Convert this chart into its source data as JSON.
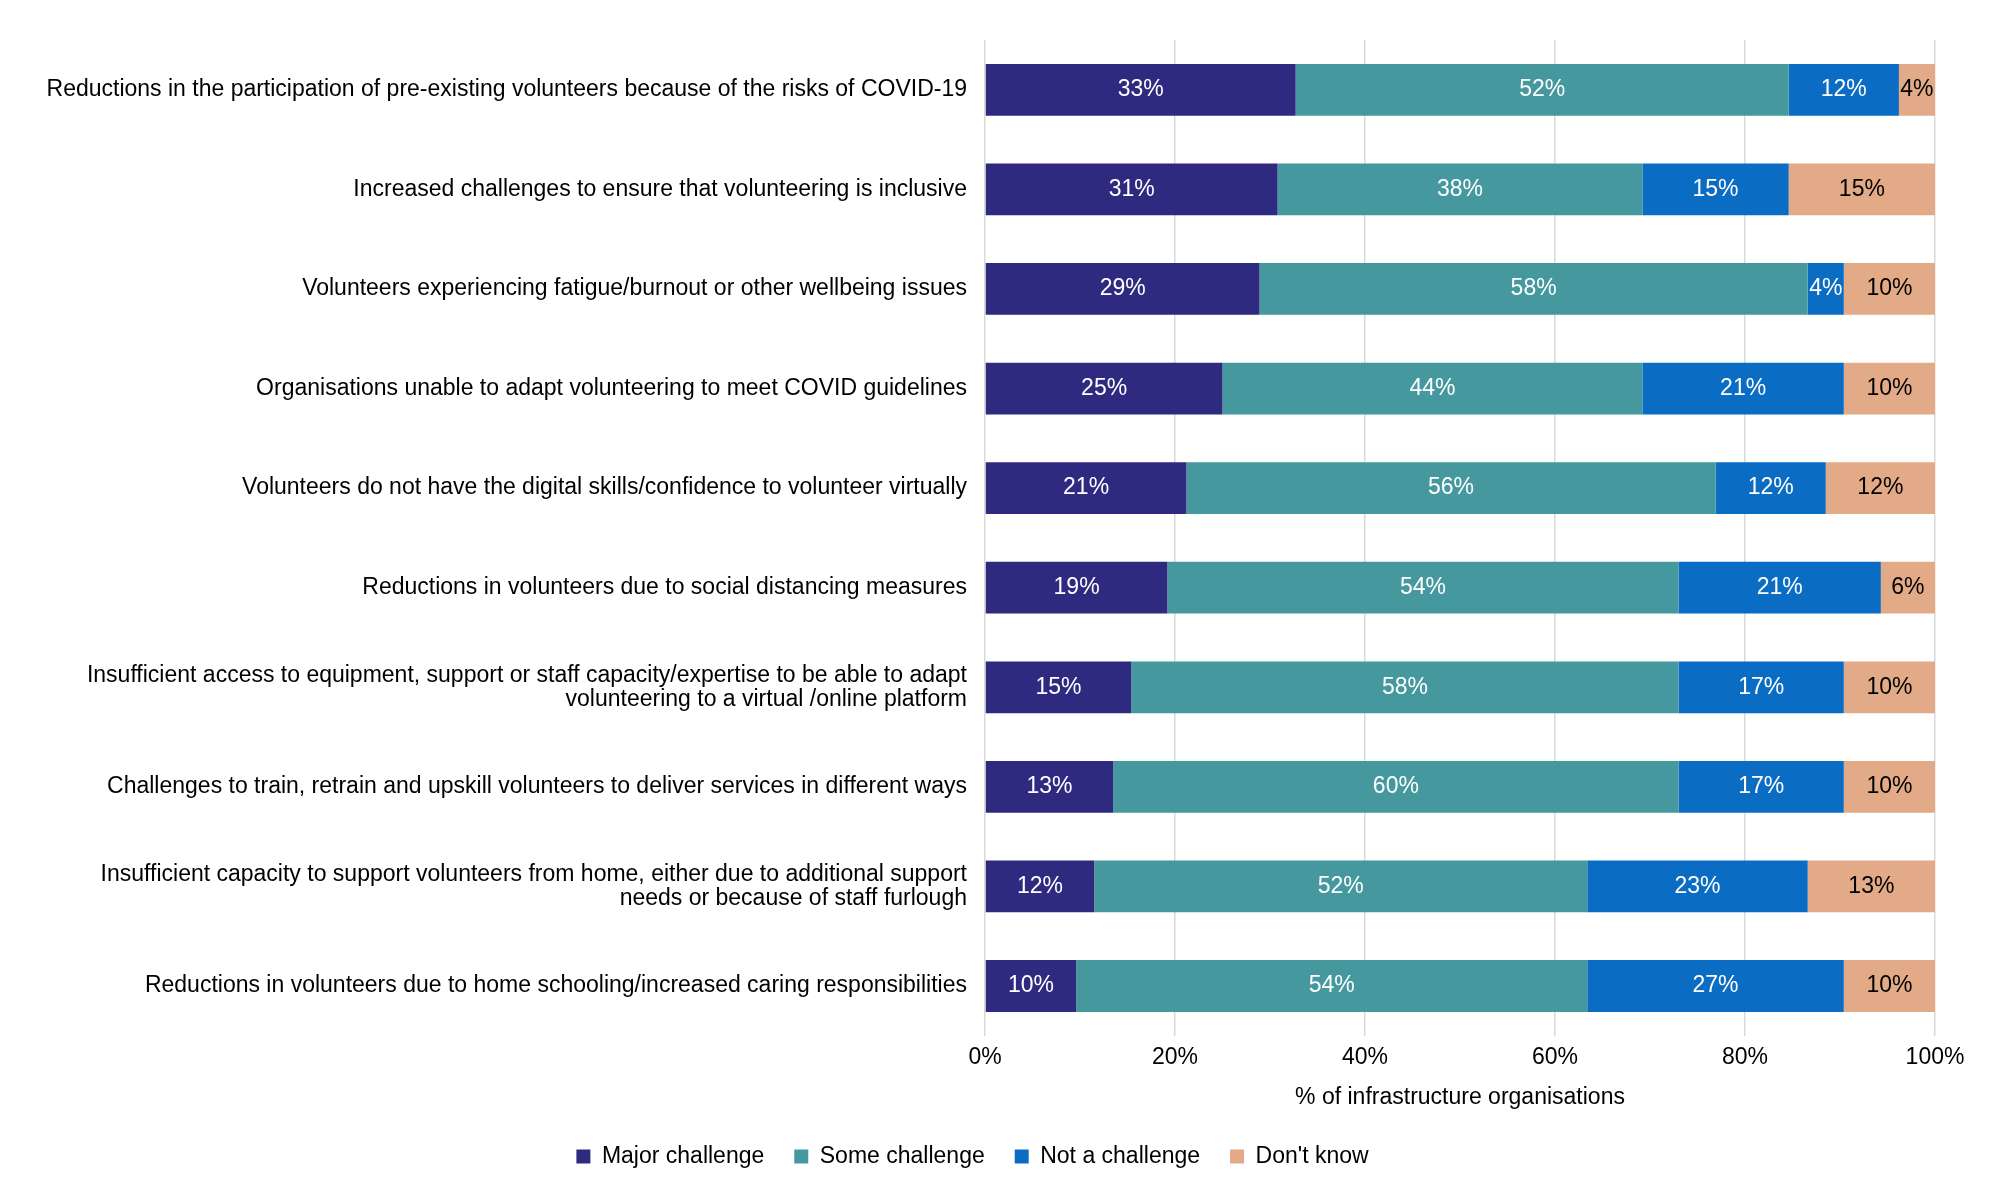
{
  "chart_data": {
    "type": "bar",
    "orientation": "horizontal",
    "stacked": true,
    "xlabel": "% of infrastructure organisations",
    "categories": [
      "Reductions in the participation of pre-existing volunteers because of the risks of COVID-19",
      "Increased challenges to ensure that volunteering is inclusive",
      "Volunteers experiencing fatigue/burnout or other wellbeing issues",
      "Organisations unable to adapt volunteering to meet COVID guidelines",
      "Volunteers do not have the digital skills/confidence to volunteer virtually",
      "Reductions in volunteers due to social distancing measures",
      "Insufficient access to equipment, support or staff capacity/expertise to be able to adapt volunteering to a virtual /online platform",
      "Challenges to train, retrain and upskill volunteers to deliver services in different ways",
      "Insufficient capacity to support volunteers from home, either due to additional support needs or because of staff furlough",
      "Reductions in volunteers due to home schooling/increased caring responsibilities"
    ],
    "series": [
      {
        "name": "Major challenge",
        "color": "#2e2a80",
        "values": [
          32.7,
          30.8,
          28.9,
          25.0,
          21.2,
          19.2,
          15.4,
          13.5,
          11.5,
          9.6
        ],
        "value_labels": [
          "33%",
          "31%",
          "29%",
          "25%",
          "21%",
          "19%",
          "15%",
          "13%",
          "12%",
          "10%"
        ]
      },
      {
        "name": "Some challenge",
        "color": "#45989e",
        "values": [
          51.9,
          38.4,
          57.7,
          44.2,
          55.7,
          53.8,
          57.6,
          59.5,
          51.9,
          53.8
        ],
        "value_labels": [
          "52%",
          "38%",
          "58%",
          "44%",
          "56%",
          "54%",
          "58%",
          "60%",
          "52%",
          "54%"
        ]
      },
      {
        "name": "Not a challenge",
        "color": "#0b6cc4",
        "values": [
          11.6,
          15.4,
          3.8,
          21.2,
          11.6,
          21.3,
          17.4,
          17.4,
          23.2,
          27.0
        ],
        "value_labels": [
          "12%",
          "15%",
          "4%",
          "21%",
          "12%",
          "21%",
          "17%",
          "17%",
          "23%",
          "27%"
        ]
      },
      {
        "name": "Don't know",
        "color": "#e2aa86",
        "values": [
          3.8,
          15.4,
          9.6,
          9.6,
          11.5,
          5.7,
          9.6,
          9.6,
          13.4,
          9.6
        ],
        "value_labels": [
          "4%",
          "15%",
          "10%",
          "10%",
          "12%",
          "6%",
          "10%",
          "10%",
          "13%",
          "10%"
        ]
      }
    ],
    "xlim": [
      0,
      100
    ],
    "xticks": [
      {
        "value": 0,
        "label": "0%"
      },
      {
        "value": 20,
        "label": "20%"
      },
      {
        "value": 40,
        "label": "40%"
      },
      {
        "value": 60,
        "label": "60%"
      },
      {
        "value": 80,
        "label": "80%"
      },
      {
        "value": 100,
        "label": "100%"
      }
    ],
    "grid": "x",
    "legend": "bottom"
  }
}
